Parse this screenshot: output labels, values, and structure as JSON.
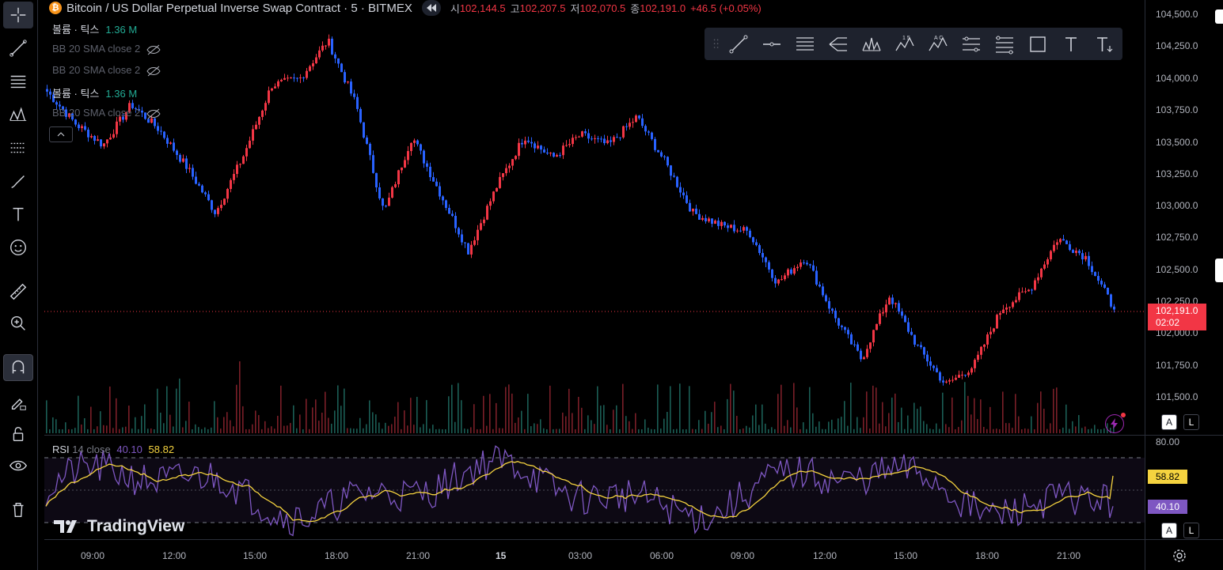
{
  "header": {
    "symbol": "Bitcoin / US Dollar Perpetual Inverse Swap Contract · 5 · BITMEX",
    "open_label": "시",
    "open_value": "102,144.5",
    "high_label": "고",
    "high_value": "102,207.5",
    "low_label": "저",
    "low_value": "102,070.5",
    "close_label": "종",
    "close_value": "102,191.0",
    "change": "+46.5 (+0.05%)",
    "coin_glyph": "₿"
  },
  "legends": [
    {
      "label": "볼륨 · 틱스",
      "value": "1.36 M"
    },
    {
      "label": "BB 20 SMA close 2"
    },
    {
      "label": "BB 20 SMA close 2"
    },
    {
      "label": "볼륨 · 틱스",
      "value": "1.36 M"
    },
    {
      "label": "BB 20 SMA close 2"
    }
  ],
  "price_axis": [
    "104,500.0",
    "104,250.0",
    "104,000.0",
    "103,750.0",
    "103,500.0",
    "103,250.0",
    "103,000.0",
    "102,750.0",
    "102,500.0",
    "102,250.0",
    "102,000.0",
    "101,750.0",
    "101,500.0"
  ],
  "current_price": {
    "price": "102,191.0",
    "countdown": "02:02"
  },
  "rsi": {
    "label": "RSI",
    "params": "14 close",
    "rsi_value": "40.10",
    "ma_value": "58.82",
    "axis_top": "80.00"
  },
  "time_axis": [
    "09:00",
    "12:00",
    "15:00",
    "18:00",
    "21:00",
    "15",
    "03:00",
    "06:00",
    "09:00",
    "12:00",
    "15:00",
    "18:00",
    "21:00"
  ],
  "watermark": "TradingView",
  "buttons": {
    "auto": "A",
    "log": "L"
  },
  "colors": {
    "up": "#f23645",
    "down": "#2962ff",
    "rsi": "#7e57c2",
    "rsi_ma": "#f5d33f"
  },
  "chart_data": {
    "type": "candlestick",
    "ylim": [
      101300,
      104550
    ],
    "key_closes": [
      103900,
      103650,
      103480,
      103800,
      103600,
      103300,
      102950,
      103400,
      103950,
      104000,
      104300,
      103800,
      102950,
      103550,
      103100,
      102650,
      103150,
      103550,
      103380,
      103560,
      103480,
      103700,
      103350,
      102950,
      102850,
      102800,
      102400,
      102600,
      102150,
      101800,
      102300,
      101900,
      101600,
      101750,
      102200,
      102350,
      102750,
      102600,
      102191
    ]
  }
}
